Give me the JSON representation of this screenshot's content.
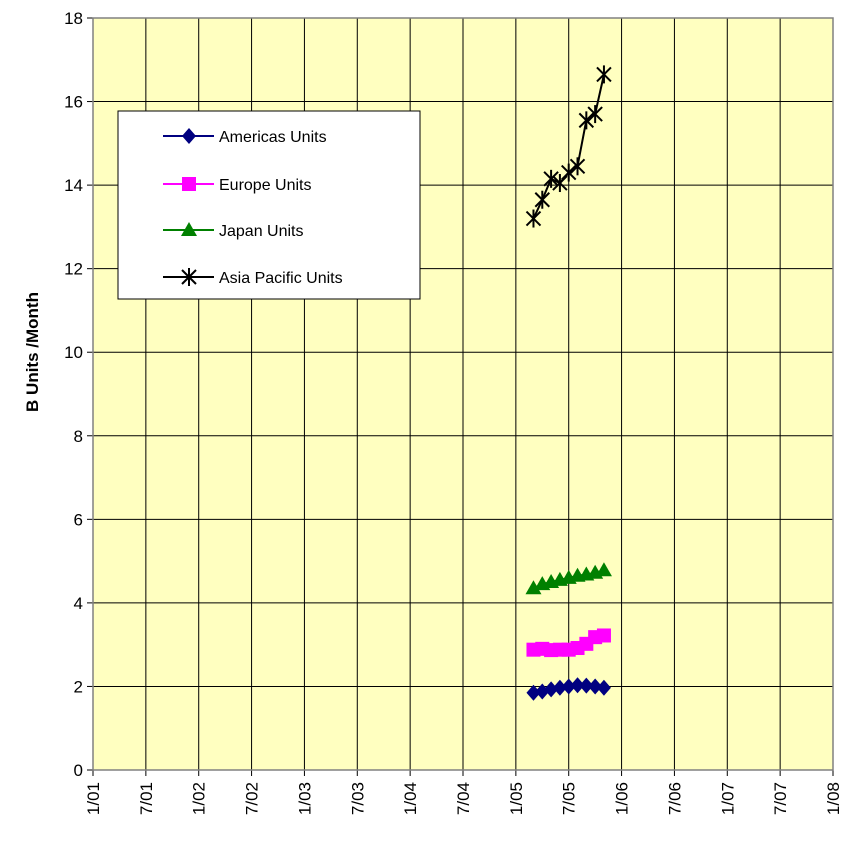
{
  "chart_data": {
    "type": "line",
    "title": "",
    "xlabel": "",
    "ylabel": "B Units /Month",
    "ylim": [
      0,
      18
    ],
    "yticks": [
      "0",
      "2",
      "4",
      "6",
      "8",
      "10",
      "12",
      "14",
      "16",
      "18"
    ],
    "xlim": [
      "2001-01",
      "2008-01"
    ],
    "xticks": [
      "1/01",
      "7/01",
      "1/02",
      "7/02",
      "1/03",
      "7/03",
      "1/04",
      "7/04",
      "1/05",
      "7/05",
      "1/06",
      "7/06",
      "1/07",
      "7/07",
      "1/08"
    ],
    "grid": true,
    "legend_position": "top-left",
    "x": [
      "2005-03",
      "2005-04",
      "2005-05",
      "2005-06",
      "2005-07",
      "2005-08",
      "2005-09",
      "2005-10",
      "2005-11"
    ],
    "series": [
      {
        "name": "Americas Units",
        "marker": "diamond",
        "color": "#000080",
        "values": [
          1.85,
          1.88,
          1.93,
          1.97,
          2.0,
          2.03,
          2.02,
          2.0,
          1.97
        ]
      },
      {
        "name": "Europe Units",
        "marker": "square",
        "color": "#FF00FF",
        "values": [
          2.88,
          2.9,
          2.87,
          2.88,
          2.88,
          2.92,
          3.02,
          3.18,
          3.22
        ]
      },
      {
        "name": "Japan Units",
        "marker": "triangle",
        "color": "#008000",
        "values": [
          4.35,
          4.45,
          4.5,
          4.55,
          4.6,
          4.65,
          4.68,
          4.72,
          4.78
        ]
      },
      {
        "name": "Asia Pacific Units",
        "marker": "asterisk",
        "color": "#000000",
        "values": [
          13.2,
          13.65,
          14.15,
          14.05,
          14.3,
          14.45,
          15.55,
          15.7,
          16.65
        ]
      }
    ]
  },
  "colors": {
    "plot_bg": "#FFFFC0",
    "grid": "#000000"
  }
}
